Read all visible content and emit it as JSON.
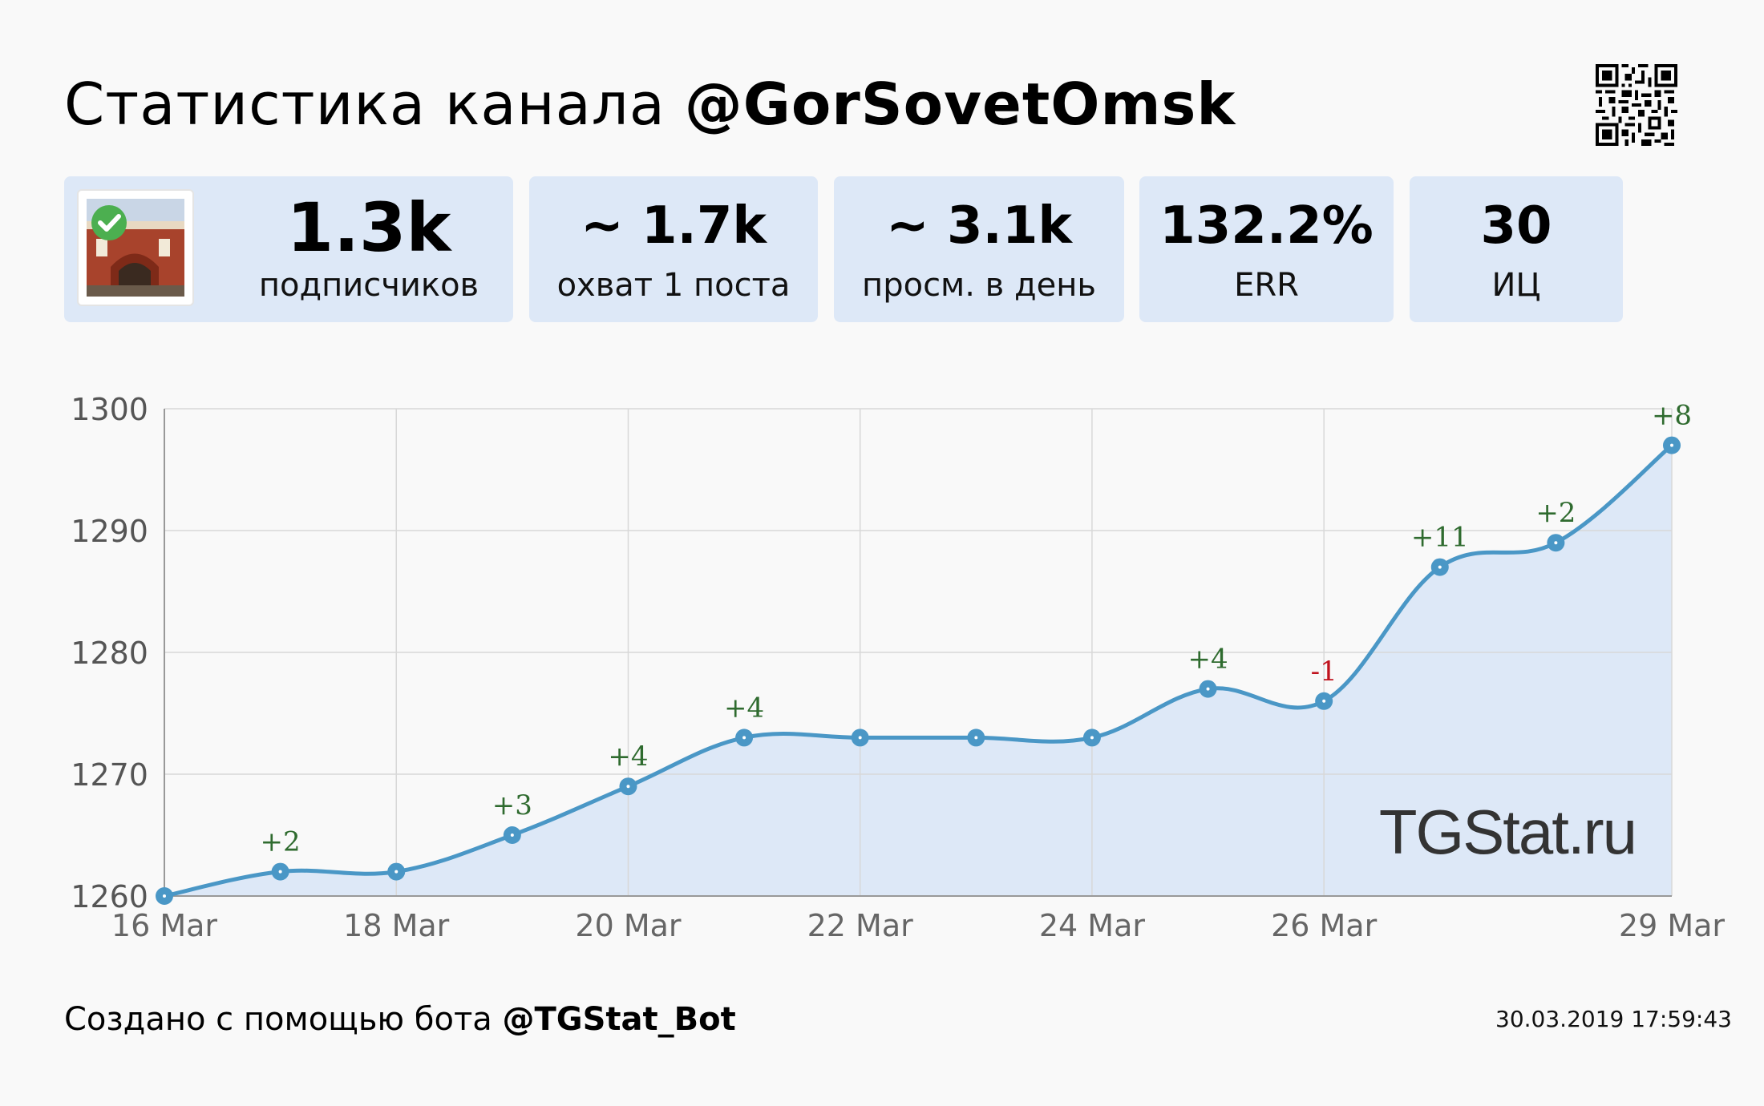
{
  "header": {
    "title_prefix": "Статистика канала",
    "channel": "@GorSovetOmsk"
  },
  "stats": [
    {
      "value": "1.3k",
      "label": "подписчиков"
    },
    {
      "value": "~ 1.7k",
      "label": "охват 1 поста"
    },
    {
      "value": "~ 3.1k",
      "label": "просм. в день"
    },
    {
      "value": "132.2%",
      "label": "ERR"
    },
    {
      "value": "30",
      "label": "ИЦ"
    }
  ],
  "chart_data": {
    "type": "line",
    "x": [
      "16 Mar",
      "17 Mar",
      "18 Mar",
      "19 Mar",
      "20 Mar",
      "21 Mar",
      "22 Mar",
      "23 Mar",
      "24 Mar",
      "25 Mar",
      "26 Mar",
      "27 Mar",
      "28 Mar",
      "29 Mar"
    ],
    "x_tick_labels": [
      "16 Mar",
      "18 Mar",
      "20 Mar",
      "22 Mar",
      "24 Mar",
      "26 Mar",
      "29 Mar"
    ],
    "values": [
      1260,
      1262,
      1262,
      1265,
      1269,
      1273,
      1273,
      1273,
      1273,
      1277,
      1276,
      1287,
      1289,
      1297
    ],
    "point_labels": [
      "",
      "+2",
      "",
      "+3",
      "+4",
      "+4",
      "",
      "",
      "",
      "+4",
      "-1",
      "+11",
      "+2",
      "+8"
    ],
    "yticks": [
      1260,
      1270,
      1280,
      1290,
      1300
    ],
    "ylim": [
      1260,
      1300
    ],
    "grid": true,
    "area_fill": true,
    "watermark": "TGStat.ru",
    "colors": {
      "line": "#4a97c6",
      "area": "#dde8f7",
      "positive": "#2f6b2f",
      "negative": "#c0121d",
      "grid": "#d8d8d8"
    }
  },
  "footer": {
    "prefix": "Создано с помощью бота",
    "bot": "@TGStat_Bot",
    "timestamp": "30.03.2019 17:59:43"
  }
}
